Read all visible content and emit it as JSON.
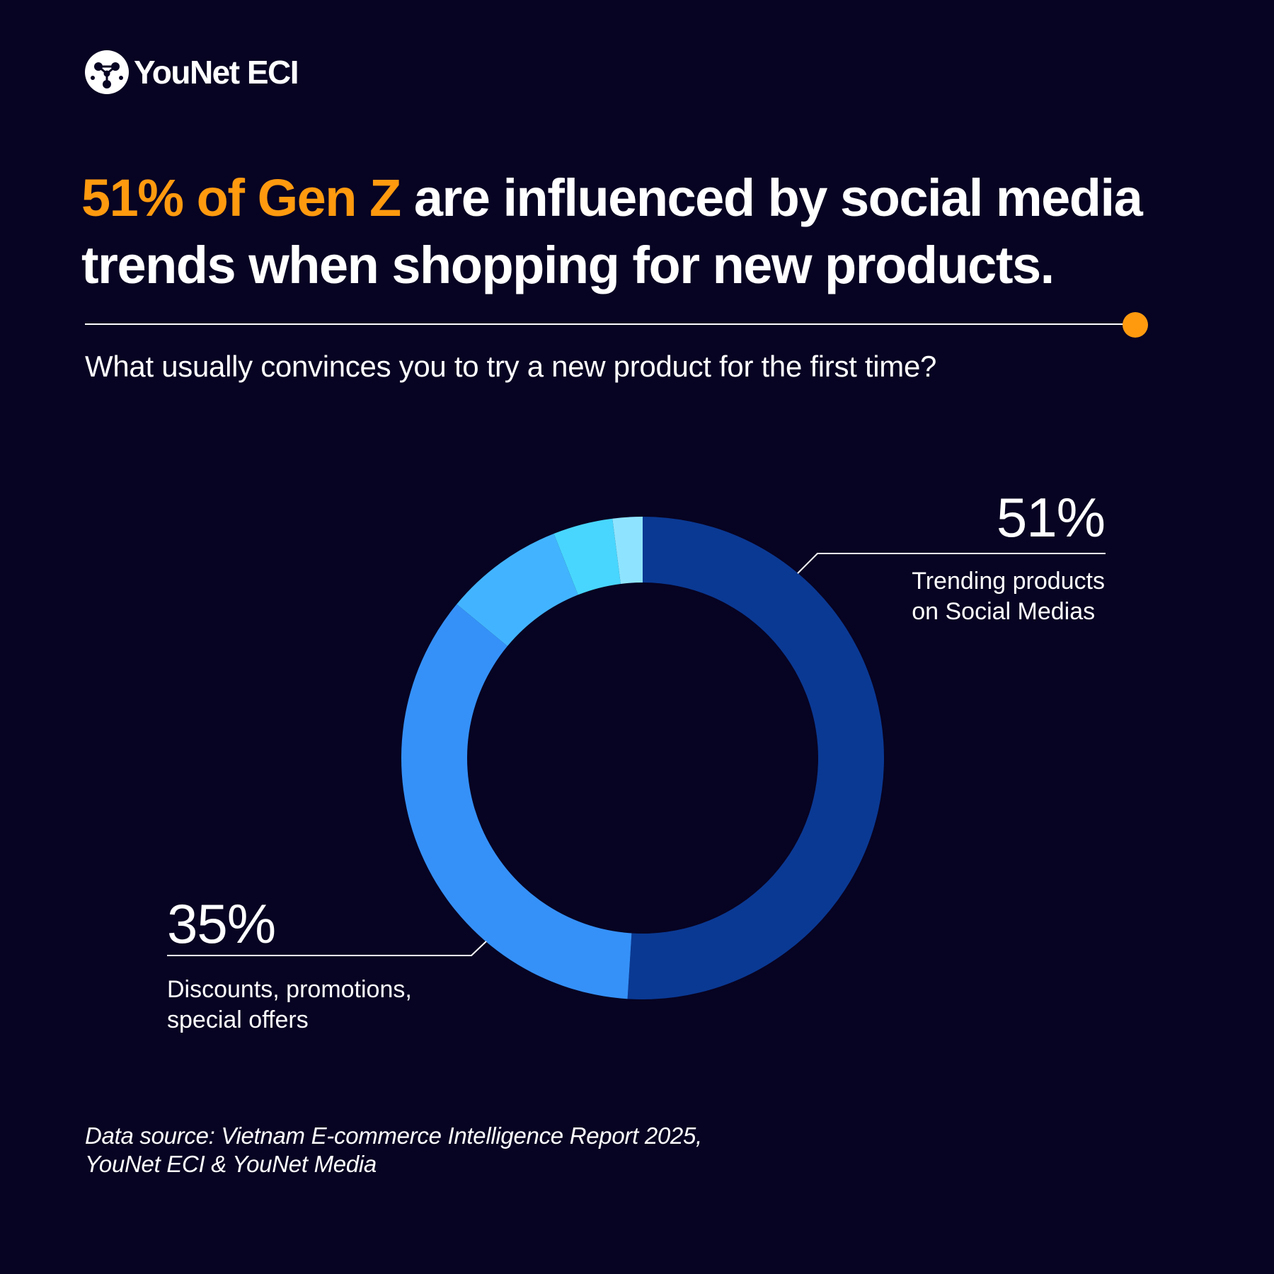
{
  "brand": {
    "name": "YouNet ECI"
  },
  "headline": {
    "highlight": "51% of Gen Z",
    "rest": " are influenced by social media trends when shopping for new products."
  },
  "question": "What usually convinces you to try a new product for the first time?",
  "chart_data": {
    "type": "pie",
    "variant": "donut",
    "slices": [
      {
        "label": "Trending products on Social Medias",
        "value": 51,
        "value_label": "51%",
        "color": "#0a3993"
      },
      {
        "label": "Discounts, promotions, special offers",
        "value": 35,
        "value_label": "35%",
        "color": "#3591f8"
      },
      {
        "label": "",
        "value": 8,
        "color": "#42b4ff"
      },
      {
        "label": "",
        "value": 4,
        "color": "#48d6fe"
      },
      {
        "label": "",
        "value": 2,
        "color": "#8ee4ff"
      }
    ],
    "callouts": [
      {
        "value_label": "51%",
        "label_lines": [
          "Trending products",
          "on Social Medias"
        ]
      },
      {
        "value_label": "35%",
        "label_lines": [
          "Discounts, promotions,",
          "special offers"
        ]
      }
    ],
    "legend": "none"
  },
  "source": {
    "line1": "Data source: Vietnam E-commerce Intelligence Report 2025,",
    "line2": "YouNet ECI & YouNet Media"
  },
  "colors": {
    "background": "#070322",
    "accent": "#ff9a0f",
    "text": "#ffffff"
  }
}
